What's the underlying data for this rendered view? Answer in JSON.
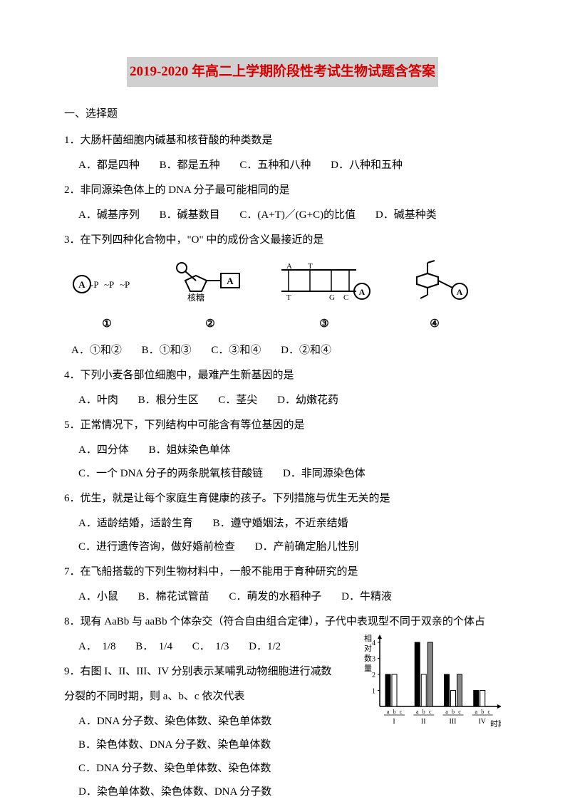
{
  "title": "2019-2020 年高二上学期阶段性考试生物试题含答案",
  "section1": "一、选择题",
  "q1": {
    "text": "1．大肠杆菌细胞内碱基和核苷酸的种类数是",
    "a": "A．都是四种",
    "b": "B．都是五种",
    "c": "C．五种和八种",
    "d": "D．八种和五种"
  },
  "q2": {
    "text": "2．非同源染色体上的 DNA 分子最可能相同的是",
    "a": "A．碱基序列",
    "b": "B．碱基数目",
    "c": "C．(A+T)／(G+C)的比值",
    "d": "D．碱基种类"
  },
  "q3": {
    "text": "3．在下列四种化合物中，\"O\" 中的成份含义最接近的是",
    "labels": {
      "l1": "①",
      "l2": "②",
      "l3": "③",
      "l4": "④"
    },
    "ribose": "核糖",
    "bases": {
      "a": "A",
      "t": "T",
      "g": "G",
      "c": "C"
    },
    "a": "A．①和②",
    "b": "B．①和③",
    "c": "C．③和④",
    "d": "D．②和④"
  },
  "q4": {
    "text": "4．下列小麦各部位细胞中，最难产生新基因的是",
    "a": "A．叶肉",
    "b": "B．根分生区",
    "c": "C．茎尖",
    "d": "D．幼嫩花药"
  },
  "q5": {
    "text": "5．正常情况下，下列结构中可能含有等位基因的是",
    "a": "A．四分体",
    "b": "B．姐妹染色单体",
    "c": "C．一个 DNA 分子的两条脱氧核苷酸链",
    "d": "D．非同源染色体"
  },
  "q6": {
    "text": "6．优生，就是让每个家庭生育健康的孩子。下列措施与优生无关的是",
    "a": "A．适龄结婚，适龄生育",
    "b": "B．遵守婚姻法，不近亲结婚",
    "c": "C．进行遗传咨询，做好婚前检查",
    "d": "D．产前确定胎儿性别"
  },
  "q7": {
    "text": "7．在飞船搭载的下列生物材料中，一般不能用于育种研究的是",
    "a": "A．小鼠",
    "b": "B．棉花试管苗",
    "c": "C．萌发的水稻种子",
    "d": "D．牛精液"
  },
  "q8": {
    "text": "8．现有 AaBb 与 aaBb 个体杂交（符合自由组合定律），子代中表现型不同于双亲的个体占",
    "a": "A．　1/8",
    "b": "B．　1/4",
    "c": "C．　1/3",
    "d": "D．1/2"
  },
  "q9": {
    "text1": "9．右图 I、II、III、IV 分别表示某哺乳动物细胞进行减数",
    "text2": "分裂的不同时期，则 a、b、c 依次代表",
    "a": "A．DNA 分子数、染色体数、染色单体数",
    "b": "B．染色体数、DNA 分子数、染色单体数",
    "c": "C．DNA 分子数、染色单体数、染色体数",
    "d": "D．染色单体数、染色体数、DNA 分子数"
  },
  "chart": {
    "ylabel": "相对数量",
    "xlabel": "时期",
    "yticks": [
      1,
      2,
      3,
      4
    ],
    "groups": [
      "I",
      "II",
      "III",
      "IV"
    ],
    "sublabels": [
      "a",
      "b",
      "c"
    ],
    "values": {
      "I": [
        2,
        2,
        0
      ],
      "II": [
        4,
        2,
        4
      ],
      "III": [
        2,
        1,
        2
      ],
      "IV": [
        1,
        1,
        0
      ]
    },
    "bar_colors": [
      "#000000",
      "#ffffff",
      "#888888"
    ],
    "bar_stroke": "#000000",
    "axis_color": "#000000"
  }
}
